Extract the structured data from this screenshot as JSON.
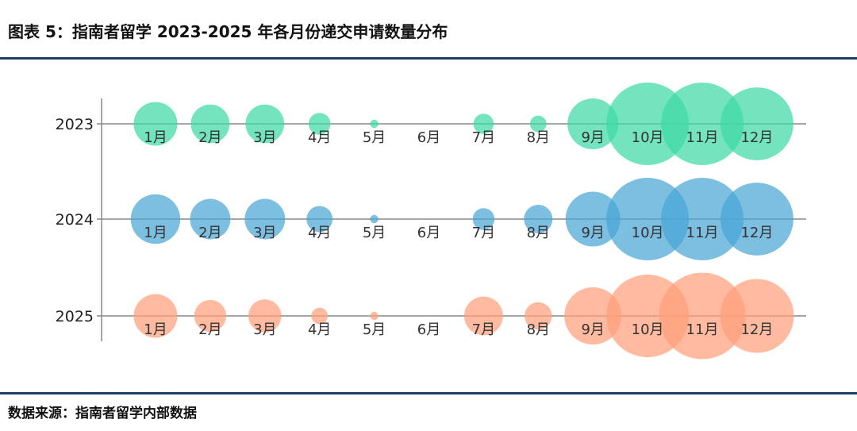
{
  "figure": {
    "title": "图表 5：指南者留学 2023-2025 年各月份递交申请数量分布",
    "source": "数据来源：指南者留学内部数据"
  },
  "colors": {
    "title_rule": "#1f3e67",
    "axis": "#888888",
    "2023": "#3fd9a6",
    "2024": "#4aa6d6",
    "2025": "#ff9f7a"
  },
  "chart_data": {
    "type": "bubble",
    "title": "",
    "xlabel": "",
    "ylabel": "",
    "years": [
      "2023",
      "2024",
      "2025"
    ],
    "months": [
      "1月",
      "2月",
      "3月",
      "4月",
      "5月",
      "6月",
      "7月",
      "8月",
      "9月",
      "10月",
      "11月",
      "12月"
    ],
    "series": [
      {
        "name": "2023",
        "sizes": [
          28,
          22,
          22,
          7,
          1,
          0,
          6,
          4,
          38,
          100,
          100,
          78
        ]
      },
      {
        "name": "2024",
        "sizes": [
          36,
          24,
          24,
          10,
          1,
          0,
          7,
          12,
          44,
          100,
          100,
          78
        ]
      },
      {
        "name": "2025",
        "sizes": [
          28,
          15,
          16,
          4,
          1,
          0,
          22,
          11,
          48,
          100,
          110,
          80
        ]
      }
    ],
    "size_note": "relative bubble area index (no numeric labels shown)"
  }
}
